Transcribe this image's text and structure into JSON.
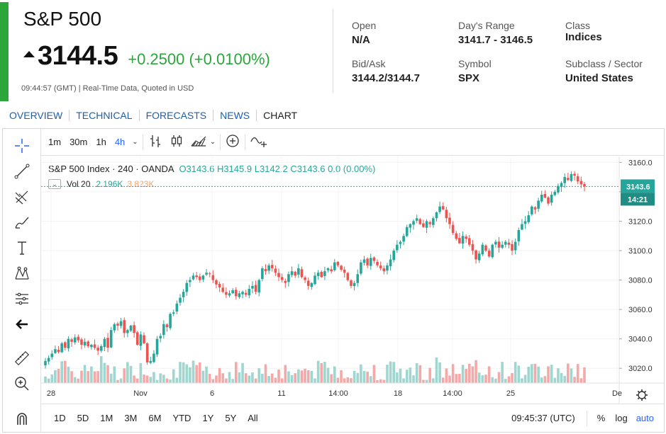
{
  "quote": {
    "title": "S&P 500",
    "price": "3144.5",
    "change": "+0.2500 (+0.0100%)",
    "time": "09:44:57 (GMT)",
    "time_note": "Real-Time Data, Quoted in USD",
    "up_color": "#2aa63a",
    "stats": [
      {
        "label": "Open",
        "value": "N/A"
      },
      {
        "label": "Day's Range",
        "value": "3141.7 - 3146.5"
      },
      {
        "label": "Class",
        "value": "Indices"
      },
      {
        "label": "Bid/Ask",
        "value": "3144.2/3144.7"
      },
      {
        "label": "Symbol",
        "value": "SPX"
      },
      {
        "label": "Subclass / Sector",
        "value": "United States"
      }
    ]
  },
  "nav": [
    "OVERVIEW",
    "TECHNICAL",
    "FORECASTS",
    "NEWS",
    "CHART"
  ],
  "toolbar": {
    "timeframes": [
      "1m",
      "30m",
      "1h",
      "4h"
    ],
    "active_timeframe": "4h"
  },
  "left_tools": [
    "crosshair-icon",
    "trendline-icon",
    "fib-icon",
    "brush-icon",
    "text-icon",
    "pattern-icon",
    "measure-icon",
    "back-arrow-icon",
    "ruler-icon",
    "zoom-icon",
    "magnet-icon"
  ],
  "legend": {
    "name": "S&P 500 Index · 240 · OANDA",
    "o": "O3143.6",
    "h": "H3145.9",
    "l": "L3142.2",
    "c": "C3143.6",
    "chg": "0.0 (0.00%)",
    "vol_label": "Vol 20",
    "vol1": "2.196K",
    "vol2": "3.823K"
  },
  "price_axis": {
    "ticks": [
      "3160.0",
      "3140.0",
      "3120.0",
      "3100.0",
      "3080.0",
      "3060.0",
      "3040.0",
      "3020.0"
    ],
    "last_price": "3143.6",
    "countdown": "14:21"
  },
  "time_axis": [
    "28",
    "Nov",
    "6",
    "11",
    "14:00",
    "18",
    "14:00",
    "25",
    "De"
  ],
  "bottom": {
    "ranges": [
      "1D",
      "5D",
      "1M",
      "3M",
      "6M",
      "YTD",
      "1Y",
      "5Y",
      "All"
    ],
    "clock": "09:45:37 (UTC)",
    "pct": "%",
    "log": "log",
    "auto": "auto"
  },
  "colors": {
    "up": "#26a69a",
    "down": "#ef5350",
    "vol_up": "#9fd6cf",
    "vol_down": "#f4a9a8",
    "accent": "#2962ff"
  },
  "chart_data": {
    "type": "candlestick",
    "y_range": [
      3010,
      3164
    ],
    "closes": [
      3025,
      3027,
      3030,
      3033,
      3031,
      3037,
      3034,
      3040,
      3038,
      3041,
      3039,
      3036,
      3038,
      3035,
      3036,
      3034,
      3032,
      3035,
      3040,
      3034,
      3046,
      3050,
      3049,
      3052,
      3044,
      3046,
      3049,
      3044,
      3036,
      3043,
      3037,
      3024,
      3025,
      3030,
      3040,
      3042,
      3050,
      3048,
      3057,
      3058,
      3064,
      3068,
      3072,
      3078,
      3080,
      3083,
      3082,
      3080,
      3083,
      3085,
      3084,
      3080,
      3077,
      3075,
      3072,
      3070,
      3071,
      3073,
      3069,
      3071,
      3072,
      3070,
      3074,
      3076,
      3072,
      3080,
      3088,
      3086,
      3090,
      3088,
      3085,
      3082,
      3080,
      3078,
      3084,
      3086,
      3083,
      3088,
      3082,
      3080,
      3076,
      3078,
      3083,
      3085,
      3082,
      3086,
      3088,
      3086,
      3092,
      3090,
      3087,
      3085,
      3080,
      3076,
      3078,
      3084,
      3092,
      3094,
      3090,
      3095,
      3093,
      3090,
      3088,
      3086,
      3090,
      3094,
      3100,
      3104,
      3106,
      3110,
      3116,
      3118,
      3120,
      3122,
      3118,
      3116,
      3120,
      3118,
      3122,
      3126,
      3130,
      3128,
      3122,
      3118,
      3112,
      3108,
      3105,
      3110,
      3108,
      3104,
      3100,
      3094,
      3098,
      3104,
      3100,
      3096,
      3104,
      3106,
      3102,
      3104,
      3106,
      3104,
      3100,
      3106,
      3114,
      3118,
      3120,
      3124,
      3130,
      3128,
      3134,
      3138,
      3136,
      3132,
      3138,
      3140,
      3144,
      3146,
      3150,
      3148,
      3152,
      3151,
      3147,
      3145,
      3143.6
    ]
  }
}
